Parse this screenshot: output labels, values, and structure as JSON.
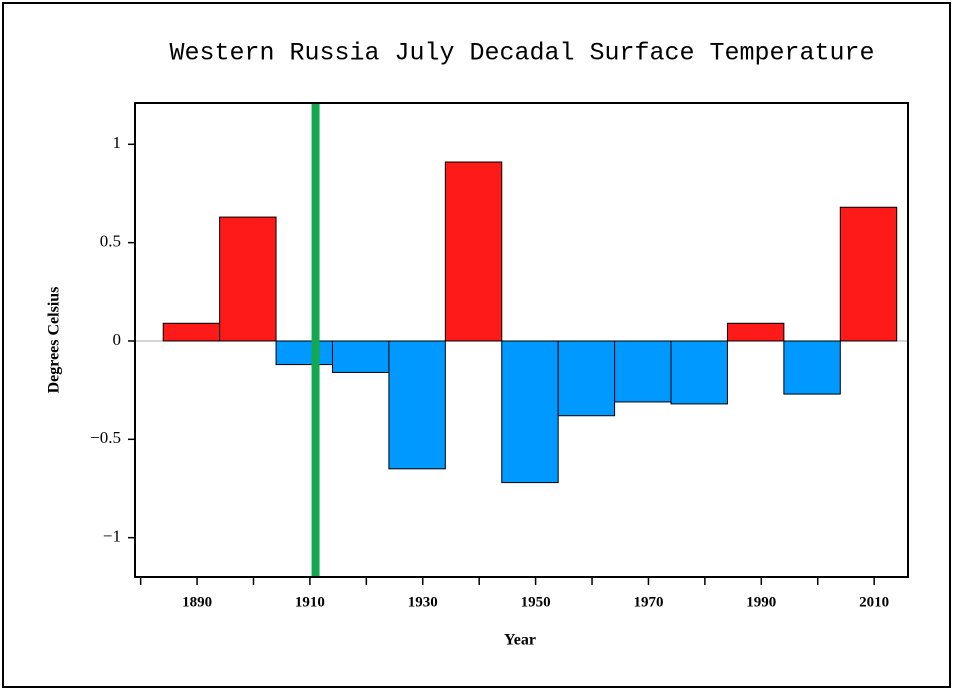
{
  "chart_data": {
    "type": "histogram",
    "title": "Western Russia July Decadal Surface Temperature",
    "xlabel": "Year",
    "ylabel": "Degrees Celsius",
    "bins": [
      1884,
      1894,
      1904,
      1914,
      1924,
      1934,
      1944,
      1954,
      1964,
      1974,
      1984,
      1994,
      2004,
      2014
    ],
    "values": [
      0.09,
      0.63,
      -0.12,
      -0.16,
      -0.65,
      0.91,
      -0.72,
      -0.38,
      -0.31,
      -0.32,
      0.09,
      -0.27,
      0.68
    ],
    "colors": {
      "positive": "#ff1a1a",
      "negative": "#0099ff"
    },
    "xlim": [
      1879,
      2016
    ],
    "xticks": [
      1890,
      1910,
      1930,
      1950,
      1970,
      1990,
      2010
    ],
    "xminor_ticks": [
      1880,
      1900,
      1920,
      1940,
      1960,
      1980,
      2000
    ],
    "ylim": [
      -1.2,
      1.21
    ],
    "yticks": [
      {
        "value": -1,
        "label": "−1"
      },
      {
        "value": -0.5,
        "label": "−0.5"
      },
      0,
      0.5,
      1
    ],
    "vline": {
      "x": 1911,
      "color": "#14a850"
    },
    "zero_line": true
  }
}
